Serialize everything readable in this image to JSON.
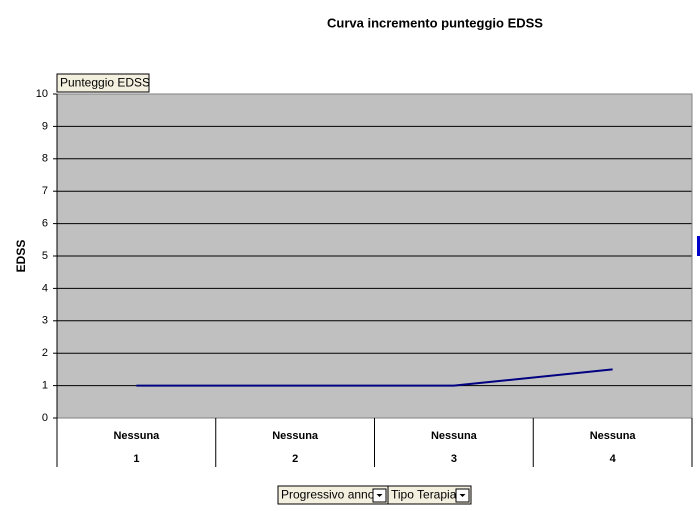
{
  "chart_data": {
    "type": "line",
    "title": "Curva incremento punteggio EDSS",
    "ylabel": "EDSS",
    "field_buttons": {
      "data": "Punteggio EDSS",
      "category": [
        "Progressivo anno",
        "Tipo Terapia"
      ]
    },
    "category_groups": [
      "Nessuna",
      "Nessuna",
      "Nessuna",
      "Nessuna"
    ],
    "categories": [
      "1",
      "2",
      "3",
      "4"
    ],
    "values": [
      1,
      1,
      1,
      1.5
    ],
    "color": "#000080",
    "plot_color": "#c0c0c0",
    "ylim": [
      0,
      10
    ],
    "yticks": [
      0,
      1,
      2,
      3,
      4,
      5,
      6,
      7,
      8,
      9,
      10
    ],
    "grid": true
  }
}
